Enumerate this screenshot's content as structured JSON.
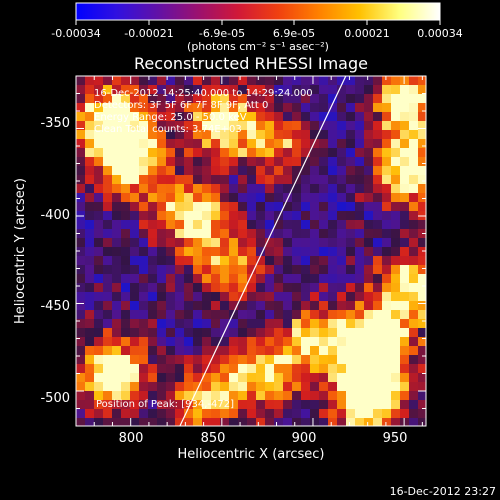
{
  "colorbar": {
    "ticks": [
      "-0.00034",
      "-0.00021",
      "-6.9e-05",
      "6.9e-05",
      "0.00021",
      "0.00034"
    ],
    "unit_label": "(photons cm⁻² s⁻¹ asec⁻²)",
    "colors": [
      "#0000ff",
      "#3010e0",
      "#6010a8",
      "#9a1070",
      "#d01838",
      "#f04010",
      "#ff8000",
      "#ffc000",
      "#ffff80",
      "#ffffff"
    ]
  },
  "chart_data": {
    "type": "heatmap",
    "title": "Reconstructed RHESSI Image",
    "xlabel": "Heliocentric X (arcsec)",
    "ylabel": "Heliocentric Y (arcsec)",
    "xlim": [
      770,
      962
    ],
    "ylim": [
      -520,
      -320
    ],
    "xticks": [
      800,
      850,
      900,
      950
    ],
    "yticks": [
      -350,
      -400,
      -450,
      -500
    ],
    "limb_line": [
      [
        827,
        -520
      ],
      [
        918,
        -320
      ]
    ],
    "annotations": [
      "16-Dec-2012 14:25:40.000 to 14:29:24.000",
      "Detectors: 3F 5F 6F 7F 8F 9F, Att 0",
      "Energy Range: 25.0 - 50.0 keV",
      "Clean     Total counts: 3.74E+03"
    ],
    "peak_label": "Position of Peak: [934,-472]",
    "hotspots": [
      {
        "x": 790,
        "y": -345,
        "level": 0.85
      },
      {
        "x": 800,
        "y": -370,
        "level": 0.8
      },
      {
        "x": 850,
        "y": -345,
        "level": 0.7
      },
      {
        "x": 835,
        "y": -400,
        "level": 0.75
      },
      {
        "x": 855,
        "y": -430,
        "level": 0.7
      },
      {
        "x": 880,
        "y": -360,
        "level": 0.6
      },
      {
        "x": 950,
        "y": -335,
        "level": 0.8
      },
      {
        "x": 955,
        "y": -375,
        "level": 0.75
      },
      {
        "x": 790,
        "y": -490,
        "level": 0.8
      },
      {
        "x": 840,
        "y": -505,
        "level": 0.75
      },
      {
        "x": 870,
        "y": -490,
        "level": 0.7
      },
      {
        "x": 934,
        "y": -472,
        "level": 1.0
      },
      {
        "x": 930,
        "y": -505,
        "level": 0.85
      },
      {
        "x": 900,
        "y": -470,
        "level": 0.6
      },
      {
        "x": 955,
        "y": -440,
        "level": 0.7
      }
    ]
  },
  "footer": {
    "timestamp": "16-Dec-2012 23:27"
  }
}
